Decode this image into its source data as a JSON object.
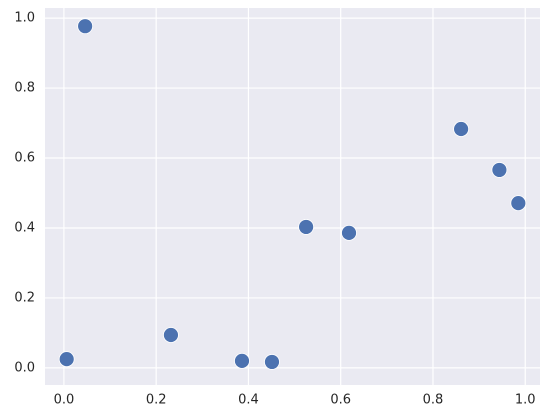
{
  "chart_data": {
    "type": "scatter",
    "x": [
      0.006,
      0.046,
      0.232,
      0.386,
      0.451,
      0.525,
      0.618,
      0.861,
      0.944,
      0.985
    ],
    "values": [
      0.025,
      0.977,
      0.094,
      0.02,
      0.017,
      0.403,
      0.386,
      0.683,
      0.566,
      0.471
    ],
    "color": "#4c72b0",
    "xlim": [
      -0.041,
      1.032
    ],
    "ylim": [
      -0.049,
      1.029
    ],
    "xticks": [
      {
        "value": 0,
        "label": "0.0"
      },
      {
        "value": 0.2,
        "label": "0.2"
      },
      {
        "value": 0.4,
        "label": "0.4"
      },
      {
        "value": 0.6,
        "label": "0.6"
      },
      {
        "value": 0.8,
        "label": "0.8"
      },
      {
        "value": 1,
        "label": "1.0"
      }
    ],
    "yticks": [
      {
        "value": 0,
        "label": "0.0"
      },
      {
        "value": 0.2,
        "label": "0.2"
      },
      {
        "value": 0.4,
        "label": "0.4"
      },
      {
        "value": 0.6,
        "label": "0.6"
      },
      {
        "value": 0.8,
        "label": "0.8"
      },
      {
        "value": 1,
        "label": "1.0"
      }
    ],
    "grid": true
  }
}
